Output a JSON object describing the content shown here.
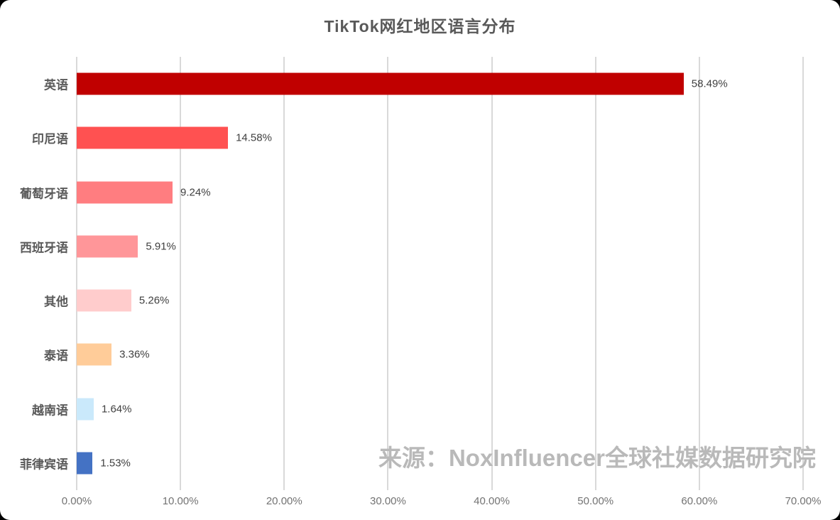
{
  "chart_data": {
    "type": "bar",
    "orientation": "horizontal",
    "title": "TikTok网红地区语言分布",
    "categories": [
      "英语",
      "印尼语",
      "葡萄牙语",
      "西班牙语",
      "其他",
      "泰语",
      "越南语",
      "菲律宾语"
    ],
    "values": [
      58.49,
      14.58,
      9.24,
      5.91,
      5.26,
      3.36,
      1.64,
      1.53
    ],
    "value_labels": [
      "58.49%",
      "14.58%",
      "9.24%",
      "5.91%",
      "5.26%",
      "3.36%",
      "1.64%",
      "1.53%"
    ],
    "bar_colors": [
      "#c00000",
      "#ff5151",
      "#ff7d80",
      "#ff9699",
      "#ffcccc",
      "#ffcc99",
      "#cae9fb",
      "#4472c4"
    ],
    "xlabel": "",
    "ylabel": "",
    "xlim": [
      0,
      70
    ],
    "xtick_values": [
      0,
      10,
      20,
      30,
      40,
      50,
      60,
      70
    ],
    "xtick_labels": [
      "0.00%",
      "10.00%",
      "20.00%",
      "30.00%",
      "40.00%",
      "50.00%",
      "60.00%",
      "70.00%"
    ],
    "grid": true,
    "legend": false
  },
  "watermark": "来源：NoxInfluencer全球社媒数据研究院",
  "colors": {
    "page_background": "#000000",
    "card_background": "#ffffff",
    "gridline": "#d9d9d9",
    "title_text": "#595959",
    "category_text": "#595959",
    "value_text": "#404040",
    "tick_text": "#737373",
    "watermark_text": "#b9b9b9"
  }
}
